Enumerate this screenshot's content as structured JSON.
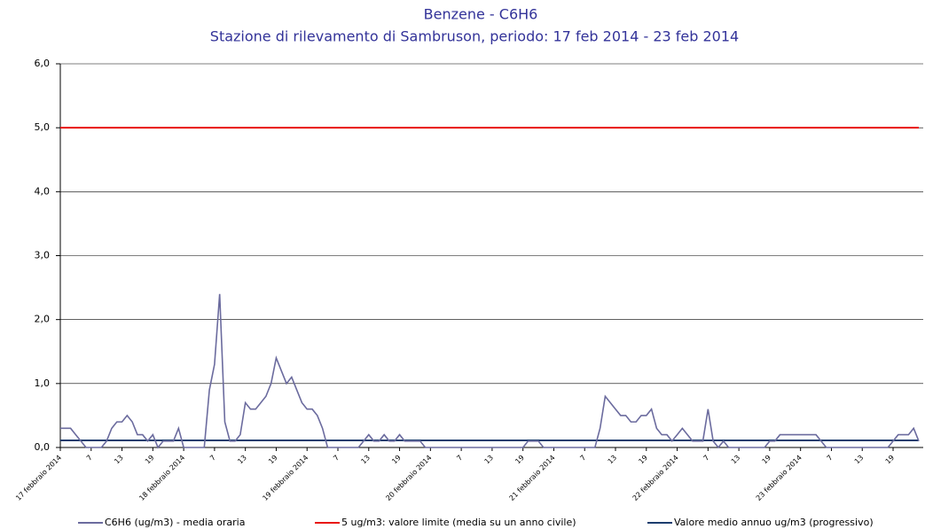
{
  "chart_data": {
    "type": "line",
    "title": "Benzene - C6H6",
    "subtitle": "Stazione di rilevamento di Sambruson, periodo: 17 feb 2014 - 23 feb 2014",
    "categories": [
      "17 febbraio 2014",
      null,
      null,
      null,
      null,
      null,
      "7",
      null,
      null,
      null,
      null,
      null,
      "13",
      null,
      null,
      null,
      null,
      null,
      "19",
      null,
      null,
      null,
      null,
      null,
      "18 febbraio 2014",
      null,
      null,
      null,
      null,
      null,
      "7",
      null,
      null,
      null,
      null,
      null,
      "13",
      null,
      null,
      null,
      null,
      null,
      "19",
      null,
      null,
      null,
      null,
      null,
      "19 febbraio 2014",
      null,
      null,
      null,
      null,
      null,
      "7",
      null,
      null,
      null,
      null,
      null,
      "13",
      null,
      null,
      null,
      null,
      null,
      "19",
      null,
      null,
      null,
      null,
      null,
      "20 febbraio 2014",
      null,
      null,
      null,
      null,
      null,
      "7",
      null,
      null,
      null,
      null,
      null,
      "13",
      null,
      null,
      null,
      null,
      null,
      "19",
      null,
      null,
      null,
      null,
      null,
      "21 febbraio 2014",
      null,
      null,
      null,
      null,
      null,
      "7",
      null,
      null,
      null,
      null,
      null,
      "13",
      null,
      null,
      null,
      null,
      null,
      "19",
      null,
      null,
      null,
      null,
      null,
      "22 febbraio 2014",
      null,
      null,
      null,
      null,
      null,
      "7",
      null,
      null,
      null,
      null,
      null,
      "13",
      null,
      null,
      null,
      null,
      null,
      "19",
      null,
      null,
      null,
      null,
      null,
      "23 febbraio 2014",
      null,
      null,
      null,
      null,
      null,
      "7",
      null,
      null,
      null,
      null,
      null,
      "13",
      null,
      null,
      null,
      null,
      null,
      "19",
      null,
      null,
      null,
      null,
      null
    ],
    "series": [
      {
        "name": "C6H6 (ug/m3)  - media oraria",
        "color": "#6b6b9e",
        "values": [
          0.3,
          0.3,
          0.3,
          0.2,
          0.1,
          0,
          0,
          0,
          0,
          0.1,
          0.3,
          0.4,
          0.4,
          0.5,
          0.4,
          0.2,
          0.2,
          0.1,
          0.2,
          0,
          0.1,
          0.1,
          0.1,
          0.3,
          0,
          0,
          0,
          0,
          0,
          0.9,
          1.3,
          2.4,
          0.4,
          0.1,
          0.1,
          0.2,
          0.7,
          0.6,
          0.6,
          0.7,
          0.8,
          1.0,
          1.4,
          1.2,
          1.0,
          1.1,
          0.9,
          0.7,
          0.6,
          0.6,
          0.5,
          0.3,
          0,
          0,
          0,
          0,
          0,
          0,
          0,
          0.1,
          0.2,
          0.1,
          0.1,
          0.2,
          0.1,
          0.1,
          0.2,
          0.1,
          0.1,
          0.1,
          0.1,
          0,
          0,
          0,
          0,
          0,
          0,
          0,
          0,
          0,
          0,
          0,
          0,
          0,
          0,
          0,
          0,
          0,
          0,
          0,
          0,
          0.1,
          0.1,
          0.1,
          0,
          0,
          0,
          0,
          0,
          0,
          0,
          0,
          0,
          0,
          0,
          0.3,
          0.8,
          0.7,
          0.6,
          0.5,
          0.5,
          0.4,
          0.4,
          0.5,
          0.5,
          0.6,
          0.3,
          0.2,
          0.2,
          0.1,
          0.2,
          0.3,
          0.2,
          0.1,
          0.1,
          0.1,
          0.6,
          0.1,
          0,
          0.1,
          0,
          0,
          0,
          0,
          0,
          0,
          0,
          0,
          0.1,
          0.1,
          0.2,
          0.2,
          0.2,
          0.2,
          0.2,
          0.2,
          0.2,
          0.2,
          0.1,
          0,
          0,
          0,
          0,
          0,
          0,
          0,
          0,
          0,
          0,
          0,
          0,
          0,
          0.1,
          0.2,
          0.2,
          0.2,
          0.3,
          0.1
        ]
      },
      {
        "name": "5 ug/m3: valore limite (media su un anno civile)",
        "color": "#e8140e",
        "values": [
          5,
          5,
          5,
          5,
          5,
          5,
          5,
          5,
          5,
          5,
          5,
          5,
          5,
          5,
          5,
          5,
          5,
          5,
          5,
          5,
          5,
          5,
          5,
          5,
          5,
          5,
          5,
          5,
          5,
          5,
          5,
          5,
          5,
          5,
          5,
          5,
          5,
          5,
          5,
          5,
          5,
          5,
          5,
          5,
          5,
          5,
          5,
          5,
          5,
          5,
          5,
          5,
          5,
          5,
          5,
          5,
          5,
          5,
          5,
          5,
          5,
          5,
          5,
          5,
          5,
          5,
          5,
          5,
          5,
          5,
          5,
          5,
          5,
          5,
          5,
          5,
          5,
          5,
          5,
          5,
          5,
          5,
          5,
          5,
          5,
          5,
          5,
          5,
          5,
          5,
          5,
          5,
          5,
          5,
          5,
          5,
          5,
          5,
          5,
          5,
          5,
          5,
          5,
          5,
          5,
          5,
          5,
          5,
          5,
          5,
          5,
          5,
          5,
          5,
          5,
          5,
          5,
          5,
          5,
          5,
          5,
          5,
          5,
          5,
          5,
          5,
          5,
          5,
          5,
          5,
          5,
          5,
          5,
          5,
          5,
          5,
          5,
          5,
          5,
          5,
          5,
          5,
          5,
          5,
          5,
          5,
          5,
          5,
          5,
          5,
          5,
          5,
          5,
          5,
          5,
          5,
          5,
          5,
          5,
          5,
          5,
          5,
          5,
          5,
          5,
          5,
          5,
          5
        ]
      },
      {
        "name": "Valore medio annuo ug/m3 (progressivo)",
        "color": "#1c3d6e",
        "values": [
          0.11,
          0.11,
          0.11,
          0.11,
          0.11,
          0.11,
          0.11,
          0.11,
          0.11,
          0.11,
          0.11,
          0.11,
          0.11,
          0.11,
          0.11,
          0.11,
          0.11,
          0.11,
          0.11,
          0.11,
          0.11,
          0.11,
          0.11,
          0.11,
          0.11,
          0.11,
          0.11,
          0.11,
          0.11,
          0.11,
          0.11,
          0.11,
          0.11,
          0.11,
          0.11,
          0.11,
          0.11,
          0.11,
          0.11,
          0.11,
          0.11,
          0.11,
          0.11,
          0.11,
          0.11,
          0.11,
          0.11,
          0.11,
          0.11,
          0.11,
          0.11,
          0.11,
          0.11,
          0.11,
          0.11,
          0.11,
          0.11,
          0.11,
          0.11,
          0.11,
          0.11,
          0.11,
          0.11,
          0.11,
          0.11,
          0.11,
          0.11,
          0.11,
          0.11,
          0.11,
          0.11,
          0.11,
          0.11,
          0.11,
          0.11,
          0.11,
          0.11,
          0.11,
          0.11,
          0.11,
          0.11,
          0.11,
          0.11,
          0.11,
          0.11,
          0.11,
          0.11,
          0.11,
          0.11,
          0.11,
          0.11,
          0.11,
          0.11,
          0.11,
          0.11,
          0.11,
          0.11,
          0.11,
          0.11,
          0.11,
          0.11,
          0.11,
          0.11,
          0.11,
          0.11,
          0.11,
          0.11,
          0.11,
          0.11,
          0.11,
          0.11,
          0.11,
          0.11,
          0.11,
          0.11,
          0.11,
          0.11,
          0.11,
          0.11,
          0.11,
          0.11,
          0.11,
          0.11,
          0.11,
          0.11,
          0.11,
          0.11,
          0.11,
          0.11,
          0.11,
          0.11,
          0.11,
          0.11,
          0.11,
          0.11,
          0.11,
          0.11,
          0.11,
          0.11,
          0.11,
          0.11,
          0.11,
          0.11,
          0.11,
          0.11,
          0.11,
          0.11,
          0.11,
          0.11,
          0.11,
          0.11,
          0.11,
          0.11,
          0.11,
          0.11,
          0.11,
          0.11,
          0.11,
          0.11,
          0.11,
          0.11,
          0.11,
          0.11,
          0.11,
          0.11,
          0.11,
          0.11,
          0.11
        ]
      }
    ],
    "ylim": [
      0,
      6
    ],
    "yticks": [
      {
        "value": 0,
        "label": "0,0"
      },
      {
        "value": 1,
        "label": "1,0"
      },
      {
        "value": 2,
        "label": "2,0"
      },
      {
        "value": 3,
        "label": "3,0"
      },
      {
        "value": 4,
        "label": "4,0"
      },
      {
        "value": 5,
        "label": "5,0"
      },
      {
        "value": 6,
        "label": "6,0"
      }
    ],
    "grid": true,
    "legend": "bottom"
  }
}
